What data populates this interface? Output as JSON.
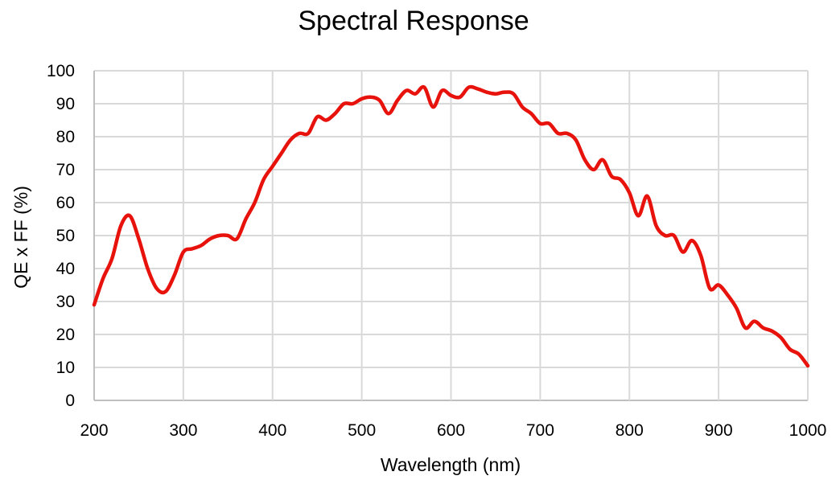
{
  "chart_data": {
    "type": "line",
    "title": "Spectral Response",
    "xlabel": "Wavelength (nm)",
    "ylabel": "QE x FF (%)",
    "xlim": [
      200,
      1000
    ],
    "ylim": [
      0,
      100
    ],
    "xticks": [
      200,
      300,
      400,
      500,
      600,
      700,
      800,
      900,
      1000
    ],
    "yticks": [
      0,
      10,
      20,
      30,
      40,
      50,
      60,
      70,
      80,
      90,
      100
    ],
    "grid": true,
    "legend": "none",
    "series": [
      {
        "color": "#e8120c",
        "x": [
          200,
          210,
          220,
          230,
          240,
          250,
          260,
          270,
          280,
          290,
          300,
          310,
          320,
          330,
          340,
          350,
          360,
          370,
          380,
          390,
          400,
          410,
          420,
          430,
          440,
          450,
          460,
          470,
          480,
          490,
          500,
          510,
          520,
          530,
          540,
          550,
          560,
          570,
          580,
          590,
          600,
          610,
          620,
          630,
          640,
          650,
          660,
          670,
          680,
          690,
          700,
          710,
          720,
          730,
          740,
          750,
          760,
          770,
          780,
          790,
          800,
          810,
          820,
          830,
          840,
          850,
          860,
          870,
          880,
          890,
          900,
          910,
          920,
          930,
          940,
          950,
          960,
          970,
          980,
          990,
          1000
        ],
        "y": [
          29,
          37,
          43,
          53,
          56,
          49,
          40,
          34,
          33,
          38,
          45,
          46,
          47,
          49,
          50,
          50,
          49,
          55,
          60,
          67,
          71,
          75,
          79,
          81,
          81,
          86,
          85,
          87,
          90,
          90,
          91.5,
          92,
          91,
          87,
          91,
          94,
          93,
          95,
          89,
          94,
          92.5,
          92,
          95,
          94.5,
          93.5,
          93,
          93.5,
          93,
          89,
          87,
          84,
          84,
          81,
          81,
          79,
          73,
          70,
          73,
          68,
          67,
          63,
          56,
          62,
          53,
          50,
          50,
          45,
          48.5,
          44,
          34,
          35,
          32,
          28,
          22,
          24,
          22,
          21,
          19,
          15.5,
          14,
          10.5
        ]
      }
    ]
  }
}
